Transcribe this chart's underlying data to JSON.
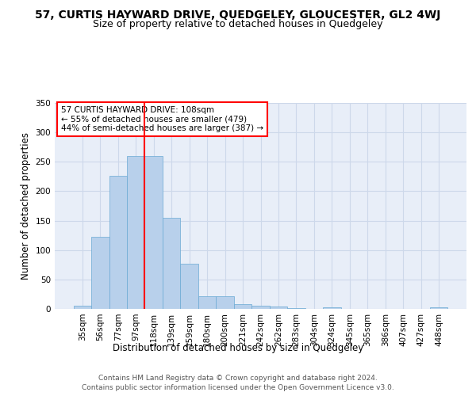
{
  "title": "57, CURTIS HAYWARD DRIVE, QUEDGELEY, GLOUCESTER, GL2 4WJ",
  "subtitle": "Size of property relative to detached houses in Quedgeley",
  "xlabel": "Distribution of detached houses by size in Quedgeley",
  "ylabel": "Number of detached properties",
  "bar_values": [
    6,
    123,
    226,
    260,
    260,
    155,
    77,
    22,
    22,
    8,
    5,
    4,
    2,
    0,
    3,
    0,
    0,
    0,
    0,
    0,
    3
  ],
  "bin_labels": [
    "35sqm",
    "56sqm",
    "77sqm",
    "97sqm",
    "118sqm",
    "139sqm",
    "159sqm",
    "180sqm",
    "200sqm",
    "221sqm",
    "242sqm",
    "262sqm",
    "283sqm",
    "304sqm",
    "324sqm",
    "345sqm",
    "365sqm",
    "386sqm",
    "407sqm",
    "427sqm",
    "448sqm"
  ],
  "bar_color": "#b8d0eb",
  "bar_edge_color": "#6aaad4",
  "grid_color": "#cdd8ea",
  "background_color": "#e8eef8",
  "red_line_x": 3.5,
  "annotation_box_text": "57 CURTIS HAYWARD DRIVE: 108sqm\n← 55% of detached houses are smaller (479)\n44% of semi-detached houses are larger (387) →",
  "ylim": [
    0,
    350
  ],
  "yticks": [
    0,
    50,
    100,
    150,
    200,
    250,
    300,
    350
  ],
  "footer_line1": "Contains HM Land Registry data © Crown copyright and database right 2024.",
  "footer_line2": "Contains public sector information licensed under the Open Government Licence v3.0.",
  "title_fontsize": 10,
  "subtitle_fontsize": 9,
  "xlabel_fontsize": 8.5,
  "ylabel_fontsize": 8.5,
  "tick_fontsize": 7.5,
  "annotation_fontsize": 7.5,
  "footer_fontsize": 6.5
}
